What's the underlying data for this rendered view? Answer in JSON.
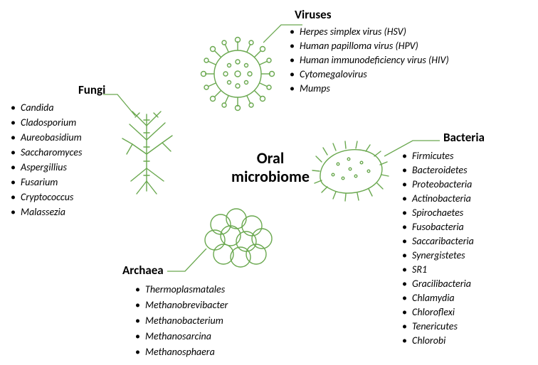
{
  "center": {
    "line1": "Oral",
    "line2": "microbiome",
    "fontsize": 22
  },
  "sections": {
    "viruses": {
      "label": "Viruses",
      "label_fontsize": 17,
      "items": [
        "Herpes simplex virus (HSV)",
        "Human papilloma virus (HPV)",
        "Human immunodeficiency virus (HIV)",
        "Cytomegalovirus",
        "Mumps"
      ],
      "item_fontsize": 14,
      "item_lineheight": 20
    },
    "fungi": {
      "label": "Fungi",
      "label_fontsize": 17,
      "items": [
        "Candida",
        "Cladosporium",
        "Aureobasidium",
        "Saccharomyces",
        "Aspergillius",
        "Fusarium",
        "Cryptococcus",
        "Malassezia"
      ],
      "item_fontsize": 14,
      "item_lineheight": 21
    },
    "archaea": {
      "label": "Archaea",
      "label_fontsize": 17,
      "items": [
        "Thermoplasmatales",
        "Methanobrevibacter",
        "Methanobacterium",
        "Methanosarcina",
        "Methanosphaera"
      ],
      "item_fontsize": 14,
      "item_lineheight": 22
    },
    "bacteria": {
      "label": "Bacteria",
      "label_fontsize": 17,
      "items": [
        "Firmicutes",
        "Bacteroidetes",
        "Proteobacteria",
        "Actinobacteria",
        "Spirochaetes",
        "Fusobacteria",
        "Saccaribacteria",
        "Synergistetes",
        "SR1",
        "Gracilibacteria",
        "Chlamydia",
        "Chloroflexi",
        "Tenericutes",
        "Chlorobi"
      ],
      "item_fontsize": 14,
      "item_lineheight": 20
    }
  },
  "colors": {
    "icon_stroke": "#6aa84f",
    "text": "#000000",
    "background": "#ffffff"
  },
  "icon_stroke_width": 1.4
}
